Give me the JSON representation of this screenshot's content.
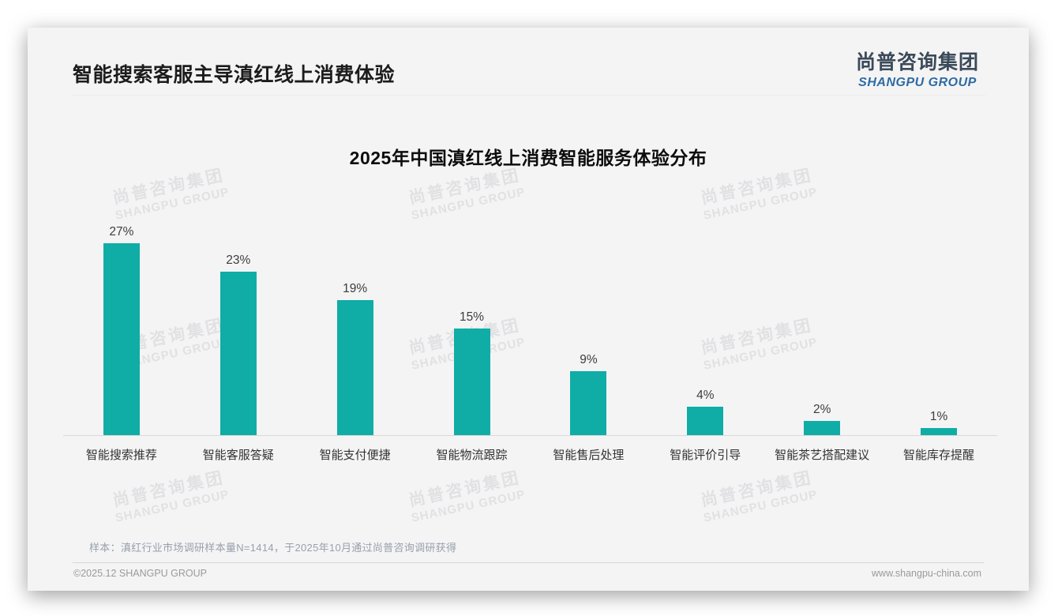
{
  "page": {
    "header": {
      "title": "智能搜索客服主导滇红线上消费体验"
    },
    "logo": {
      "cn": "尚普咨询集团",
      "en": "SHANGPU GROUP"
    },
    "watermark": {
      "cn": "尚普咨询集团",
      "en": "SHANGPU GROUP"
    },
    "footnote": "样本：滇红行业市场调研样本量N=1414，于2025年10月通过尚普咨询调研获得",
    "footer": {
      "copyright": "©2025.12 SHANGPU GROUP",
      "website": "www.shangpu-china.com"
    }
  },
  "colors": {
    "bar": "#0fada6",
    "logo_cn": "#3b4a59",
    "logo_en": "#2d6ba3",
    "card_background": "#f4f4f5"
  },
  "chart_data": {
    "type": "bar",
    "title": "2025年中国滇红线上消费智能服务体验分布",
    "categories": [
      "智能搜索推荐",
      "智能客服答疑",
      "智能支付便捷",
      "智能物流跟踪",
      "智能售后处理",
      "智能评价引导",
      "智能茶艺搭配建议",
      "智能库存提醒"
    ],
    "values": [
      27,
      23,
      19,
      15,
      9,
      4,
      2,
      1
    ],
    "unit": "%",
    "value_labels": [
      "27%",
      "23%",
      "19%",
      "15%",
      "9%",
      "4%",
      "2%",
      "1%"
    ],
    "bar_color": "#0fada6",
    "xlabel": "",
    "ylabel": "",
    "ylim": [
      0,
      30
    ],
    "grid": false,
    "legend": null
  }
}
